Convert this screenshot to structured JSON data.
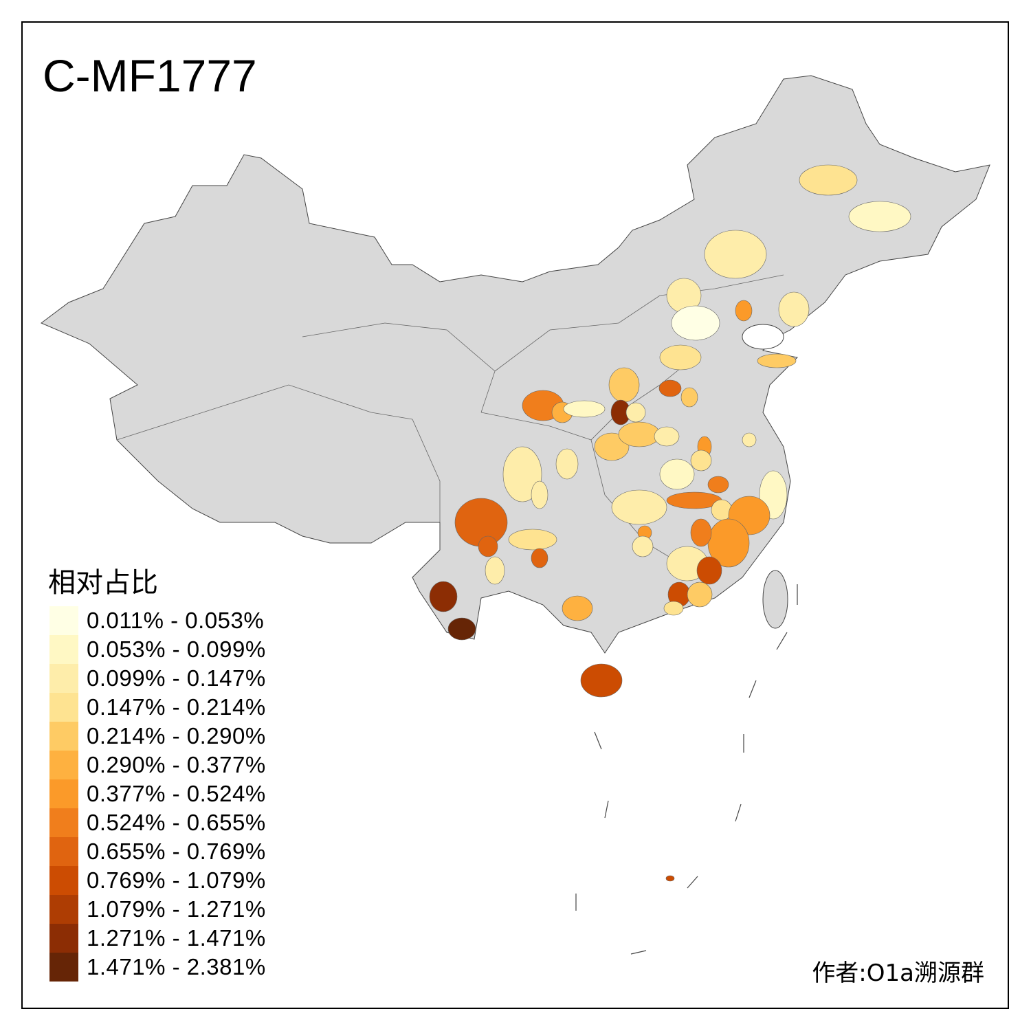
{
  "title": "C-MF1777",
  "legend": {
    "title": "相对占比",
    "items": [
      {
        "label": "0.011% - 0.053%",
        "color": "#FFFFE5"
      },
      {
        "label": "0.053% - 0.099%",
        "color": "#FFF8C4"
      },
      {
        "label": "0.099% - 0.147%",
        "color": "#FEEDAA"
      },
      {
        "label": "0.147% - 0.214%",
        "color": "#FEE391"
      },
      {
        "label": "0.214% - 0.290%",
        "color": "#FECB64"
      },
      {
        "label": "0.290% - 0.377%",
        "color": "#FEB140"
      },
      {
        "label": "0.377% - 0.524%",
        "color": "#FB9A29"
      },
      {
        "label": "0.524% - 0.655%",
        "color": "#F07E1C"
      },
      {
        "label": "0.655% - 0.769%",
        "color": "#E06410"
      },
      {
        "label": "0.769% - 1.079%",
        "color": "#CC4C02"
      },
      {
        "label": "1.079% - 1.271%",
        "color": "#AE3D03"
      },
      {
        "label": "1.271% - 1.471%",
        "color": "#8C2D04"
      },
      {
        "label": "1.471% - 2.381%",
        "color": "#662506"
      }
    ]
  },
  "base_color": "#D9D9D9",
  "author": "作者:O1a溯源群"
}
